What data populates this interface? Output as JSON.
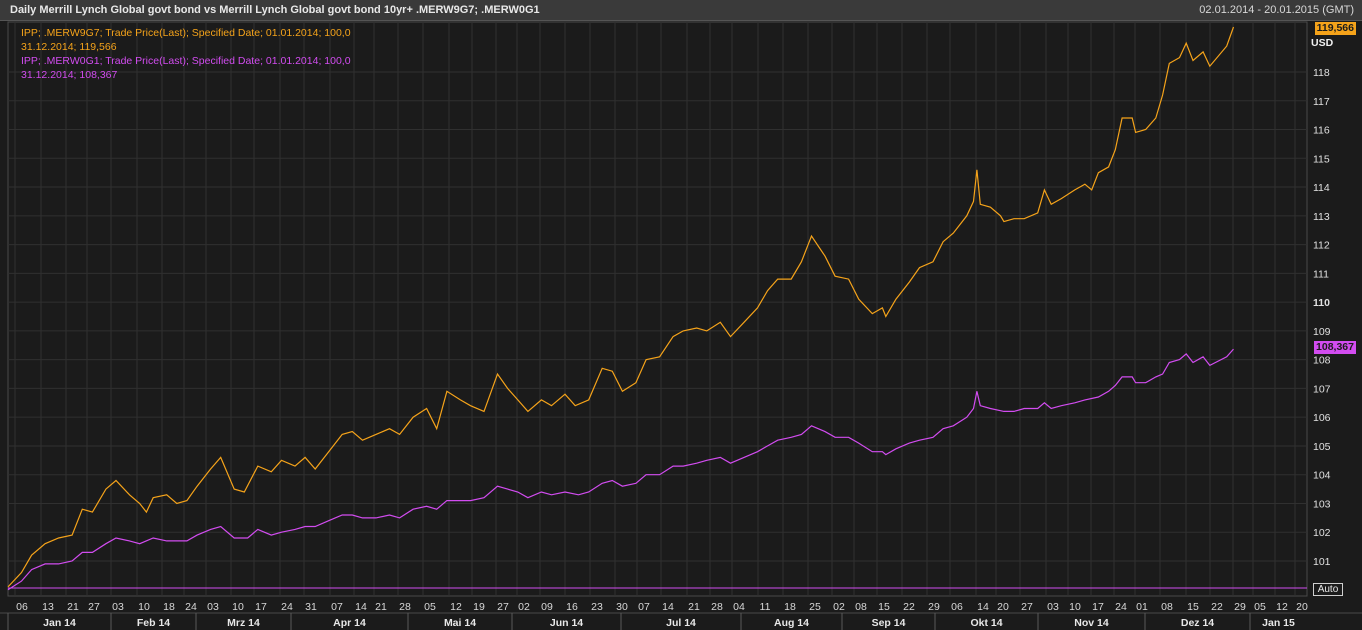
{
  "header": {
    "title": "Daily Merrill Lynch Global govt bond vs Merrill Lynch Global govt bond 10yr+ .MERW9G7; .MERW0G1",
    "date_range": "02.01.2014 - 20.01.2015 (GMT)"
  },
  "legend": {
    "series1_line1": "IPP; .MERW9G7; Trade Price(Last); Specified Date; 01.01.2014; 100,0",
    "series1_line2": "31.12.2014; 119,566",
    "series2_line1": "IPP; .MERW0G1; Trade Price(Last); Specified Date; 01.01.2014; 100,0",
    "series2_line2": "31.12.2014; 108,367"
  },
  "axis": {
    "currency": "USD",
    "auto_label": "Auto"
  },
  "last_values": {
    "series1": "119,566",
    "series2": "108,367"
  },
  "colors": {
    "series1": "#f5a31a",
    "series2": "#d24cf0",
    "grid": "#303030",
    "background": "#1b1b1b"
  },
  "chart_data": {
    "type": "line",
    "title": "Daily Merrill Lynch Global govt bond vs Merrill Lynch Global govt bond 10yr+ .MERW9G7; .MERW0G1",
    "x_range": [
      "2014-01-02",
      "2015-01-20"
    ],
    "ylim": [
      100,
      119.6
    ],
    "y_ticks": [
      "101",
      "102",
      "103",
      "104",
      "105",
      "106",
      "107",
      "108",
      "109",
      "110",
      "111",
      "112",
      "113",
      "114",
      "115",
      "116",
      "117",
      "118"
    ],
    "y_bold_tick": "110",
    "x_day_ticks": [
      "06",
      "13",
      "21",
      "27",
      "03",
      "10",
      "18",
      "24",
      "03",
      "10",
      "17",
      "24",
      "31",
      "07",
      "14",
      "21",
      "28",
      "05",
      "12",
      "19",
      "27",
      "02",
      "09",
      "16",
      "23",
      "30",
      "07",
      "14",
      "21",
      "28",
      "04",
      "11",
      "18",
      "25",
      "02",
      "08",
      "15",
      "22",
      "29",
      "06",
      "14",
      "20",
      "27",
      "03",
      "10",
      "17",
      "24",
      "01",
      "08",
      "15",
      "22",
      "29",
      "05",
      "12",
      "20"
    ],
    "x_month_labels": [
      "Jan 14",
      "Feb 14",
      "Mrz 14",
      "Apr 14",
      "Mai 14",
      "Jun 14",
      "Jul 14",
      "Aug 14",
      "Sep 14",
      "Okt 14",
      "Nov 14",
      "Dez 14",
      "Jan 15"
    ],
    "grid": true,
    "legend_position": "top-left",
    "series": [
      {
        "name": "IPP; .MERW9G7; Trade Price(Last); Specified Date; 01.01.2014; 100,0",
        "color": "#f5a31a",
        "points": [
          [
            "2014-01-02",
            100.1
          ],
          [
            "2014-01-06",
            100.6
          ],
          [
            "2014-01-09",
            101.2
          ],
          [
            "2014-01-13",
            101.6
          ],
          [
            "2014-01-17",
            101.8
          ],
          [
            "2014-01-21",
            101.9
          ],
          [
            "2014-01-24",
            102.8
          ],
          [
            "2014-01-27",
            102.7
          ],
          [
            "2014-01-31",
            103.5
          ],
          [
            "2014-02-03",
            103.8
          ],
          [
            "2014-02-07",
            103.3
          ],
          [
            "2014-02-10",
            103.0
          ],
          [
            "2014-02-12",
            102.7
          ],
          [
            "2014-02-14",
            103.2
          ],
          [
            "2014-02-18",
            103.3
          ],
          [
            "2014-02-21",
            103.0
          ],
          [
            "2014-02-24",
            103.1
          ],
          [
            "2014-02-27",
            103.6
          ],
          [
            "2014-03-03",
            104.2
          ],
          [
            "2014-03-06",
            104.6
          ],
          [
            "2014-03-10",
            103.5
          ],
          [
            "2014-03-13",
            103.4
          ],
          [
            "2014-03-17",
            104.3
          ],
          [
            "2014-03-21",
            104.1
          ],
          [
            "2014-03-24",
            104.5
          ],
          [
            "2014-03-28",
            104.3
          ],
          [
            "2014-03-31",
            104.6
          ],
          [
            "2014-04-03",
            104.2
          ],
          [
            "2014-04-07",
            104.8
          ],
          [
            "2014-04-11",
            105.4
          ],
          [
            "2014-04-14",
            105.5
          ],
          [
            "2014-04-17",
            105.2
          ],
          [
            "2014-04-21",
            105.4
          ],
          [
            "2014-04-25",
            105.6
          ],
          [
            "2014-04-28",
            105.4
          ],
          [
            "2014-05-02",
            106.0
          ],
          [
            "2014-05-06",
            106.3
          ],
          [
            "2014-05-09",
            105.6
          ],
          [
            "2014-05-12",
            106.9
          ],
          [
            "2014-05-16",
            106.6
          ],
          [
            "2014-05-19",
            106.4
          ],
          [
            "2014-05-23",
            106.2
          ],
          [
            "2014-05-27",
            107.5
          ],
          [
            "2014-05-30",
            107.0
          ],
          [
            "2014-06-02",
            106.6
          ],
          [
            "2014-06-05",
            106.2
          ],
          [
            "2014-06-09",
            106.6
          ],
          [
            "2014-06-12",
            106.4
          ],
          [
            "2014-06-16",
            106.8
          ],
          [
            "2014-06-19",
            106.4
          ],
          [
            "2014-06-23",
            106.6
          ],
          [
            "2014-06-27",
            107.7
          ],
          [
            "2014-06-30",
            107.6
          ],
          [
            "2014-07-03",
            106.9
          ],
          [
            "2014-07-07",
            107.2
          ],
          [
            "2014-07-10",
            108.0
          ],
          [
            "2014-07-14",
            108.1
          ],
          [
            "2014-07-18",
            108.8
          ],
          [
            "2014-07-21",
            109.0
          ],
          [
            "2014-07-25",
            109.1
          ],
          [
            "2014-07-28",
            109.0
          ],
          [
            "2014-08-01",
            109.3
          ],
          [
            "2014-08-04",
            108.8
          ],
          [
            "2014-08-08",
            109.3
          ],
          [
            "2014-08-12",
            109.8
          ],
          [
            "2014-08-15",
            110.4
          ],
          [
            "2014-08-18",
            110.8
          ],
          [
            "2014-08-22",
            110.8
          ],
          [
            "2014-08-25",
            111.4
          ],
          [
            "2014-08-28",
            112.3
          ],
          [
            "2014-09-01",
            111.6
          ],
          [
            "2014-09-04",
            110.9
          ],
          [
            "2014-09-08",
            110.8
          ],
          [
            "2014-09-11",
            110.1
          ],
          [
            "2014-09-15",
            109.6
          ],
          [
            "2014-09-18",
            109.8
          ],
          [
            "2014-09-19",
            109.5
          ],
          [
            "2014-09-22",
            110.1
          ],
          [
            "2014-09-26",
            110.7
          ],
          [
            "2014-09-29",
            111.2
          ],
          [
            "2014-10-03",
            111.4
          ],
          [
            "2014-10-06",
            112.1
          ],
          [
            "2014-10-09",
            112.4
          ],
          [
            "2014-10-13",
            113.0
          ],
          [
            "2014-10-15",
            113.5
          ],
          [
            "2014-10-16",
            114.6
          ],
          [
            "2014-10-17",
            113.4
          ],
          [
            "2014-10-20",
            113.3
          ],
          [
            "2014-10-23",
            113.0
          ],
          [
            "2014-10-24",
            112.8
          ],
          [
            "2014-10-27",
            112.9
          ],
          [
            "2014-10-30",
            112.9
          ],
          [
            "2014-11-03",
            113.1
          ],
          [
            "2014-11-05",
            113.9
          ],
          [
            "2014-11-07",
            113.4
          ],
          [
            "2014-11-10",
            113.6
          ],
          [
            "2014-11-14",
            113.9
          ],
          [
            "2014-11-17",
            114.1
          ],
          [
            "2014-11-19",
            113.9
          ],
          [
            "2014-11-21",
            114.5
          ],
          [
            "2014-11-24",
            114.7
          ],
          [
            "2014-11-26",
            115.3
          ],
          [
            "2014-11-28",
            116.4
          ],
          [
            "2014-12-01",
            116.4
          ],
          [
            "2014-12-02",
            115.9
          ],
          [
            "2014-12-05",
            116.0
          ],
          [
            "2014-12-08",
            116.4
          ],
          [
            "2014-12-10",
            117.2
          ],
          [
            "2014-12-12",
            118.3
          ],
          [
            "2014-12-15",
            118.5
          ],
          [
            "2014-12-17",
            119.0
          ],
          [
            "2014-12-19",
            118.4
          ],
          [
            "2014-12-22",
            118.7
          ],
          [
            "2014-12-24",
            118.2
          ],
          [
            "2014-12-29",
            118.9
          ],
          [
            "2014-12-31",
            119.566
          ]
        ]
      },
      {
        "name": "IPP; .MERW0G1; Trade Price(Last); Specified Date; 01.01.2014; 100,0",
        "color": "#d24cf0",
        "points": [
          [
            "2014-01-02",
            100.0
          ],
          [
            "2014-01-06",
            100.3
          ],
          [
            "2014-01-09",
            100.7
          ],
          [
            "2014-01-13",
            100.9
          ],
          [
            "2014-01-17",
            100.9
          ],
          [
            "2014-01-21",
            101.0
          ],
          [
            "2014-01-24",
            101.3
          ],
          [
            "2014-01-27",
            101.3
          ],
          [
            "2014-01-31",
            101.6
          ],
          [
            "2014-02-03",
            101.8
          ],
          [
            "2014-02-07",
            101.7
          ],
          [
            "2014-02-10",
            101.6
          ],
          [
            "2014-02-14",
            101.8
          ],
          [
            "2014-02-18",
            101.7
          ],
          [
            "2014-02-24",
            101.7
          ],
          [
            "2014-02-27",
            101.9
          ],
          [
            "2014-03-03",
            102.1
          ],
          [
            "2014-03-06",
            102.2
          ],
          [
            "2014-03-10",
            101.8
          ],
          [
            "2014-03-14",
            101.8
          ],
          [
            "2014-03-17",
            102.1
          ],
          [
            "2014-03-21",
            101.9
          ],
          [
            "2014-03-24",
            102.0
          ],
          [
            "2014-03-28",
            102.1
          ],
          [
            "2014-03-31",
            102.2
          ],
          [
            "2014-04-03",
            102.2
          ],
          [
            "2014-04-07",
            102.4
          ],
          [
            "2014-04-11",
            102.6
          ],
          [
            "2014-04-14",
            102.6
          ],
          [
            "2014-04-17",
            102.5
          ],
          [
            "2014-04-21",
            102.5
          ],
          [
            "2014-04-25",
            102.6
          ],
          [
            "2014-04-28",
            102.5
          ],
          [
            "2014-05-02",
            102.8
          ],
          [
            "2014-05-06",
            102.9
          ],
          [
            "2014-05-09",
            102.8
          ],
          [
            "2014-05-12",
            103.1
          ],
          [
            "2014-05-16",
            103.1
          ],
          [
            "2014-05-19",
            103.1
          ],
          [
            "2014-05-23",
            103.2
          ],
          [
            "2014-05-27",
            103.6
          ],
          [
            "2014-05-30",
            103.5
          ],
          [
            "2014-06-02",
            103.4
          ],
          [
            "2014-06-05",
            103.2
          ],
          [
            "2014-06-09",
            103.4
          ],
          [
            "2014-06-12",
            103.3
          ],
          [
            "2014-06-16",
            103.4
          ],
          [
            "2014-06-20",
            103.3
          ],
          [
            "2014-06-23",
            103.4
          ],
          [
            "2014-06-27",
            103.7
          ],
          [
            "2014-06-30",
            103.8
          ],
          [
            "2014-07-03",
            103.6
          ],
          [
            "2014-07-07",
            103.7
          ],
          [
            "2014-07-10",
            104.0
          ],
          [
            "2014-07-14",
            104.0
          ],
          [
            "2014-07-18",
            104.3
          ],
          [
            "2014-07-21",
            104.3
          ],
          [
            "2014-07-25",
            104.4
          ],
          [
            "2014-07-28",
            104.5
          ],
          [
            "2014-08-01",
            104.6
          ],
          [
            "2014-08-04",
            104.4
          ],
          [
            "2014-08-08",
            104.6
          ],
          [
            "2014-08-12",
            104.8
          ],
          [
            "2014-08-15",
            105.0
          ],
          [
            "2014-08-18",
            105.2
          ],
          [
            "2014-08-22",
            105.3
          ],
          [
            "2014-08-25",
            105.4
          ],
          [
            "2014-08-28",
            105.7
          ],
          [
            "2014-09-01",
            105.5
          ],
          [
            "2014-09-04",
            105.3
          ],
          [
            "2014-09-08",
            105.3
          ],
          [
            "2014-09-11",
            105.1
          ],
          [
            "2014-09-15",
            104.8
          ],
          [
            "2014-09-18",
            104.8
          ],
          [
            "2014-09-19",
            104.7
          ],
          [
            "2014-09-22",
            104.9
          ],
          [
            "2014-09-26",
            105.1
          ],
          [
            "2014-09-29",
            105.2
          ],
          [
            "2014-10-03",
            105.3
          ],
          [
            "2014-10-06",
            105.6
          ],
          [
            "2014-10-09",
            105.7
          ],
          [
            "2014-10-13",
            106.0
          ],
          [
            "2014-10-15",
            106.3
          ],
          [
            "2014-10-16",
            106.9
          ],
          [
            "2014-10-17",
            106.4
          ],
          [
            "2014-10-20",
            106.3
          ],
          [
            "2014-10-24",
            106.2
          ],
          [
            "2014-10-27",
            106.2
          ],
          [
            "2014-10-30",
            106.3
          ],
          [
            "2014-11-03",
            106.3
          ],
          [
            "2014-11-05",
            106.5
          ],
          [
            "2014-11-07",
            106.3
          ],
          [
            "2014-11-10",
            106.4
          ],
          [
            "2014-11-14",
            106.5
          ],
          [
            "2014-11-17",
            106.6
          ],
          [
            "2014-11-21",
            106.7
          ],
          [
            "2014-11-24",
            106.9
          ],
          [
            "2014-11-26",
            107.1
          ],
          [
            "2014-11-28",
            107.4
          ],
          [
            "2014-12-01",
            107.4
          ],
          [
            "2014-12-02",
            107.2
          ],
          [
            "2014-12-05",
            107.2
          ],
          [
            "2014-12-08",
            107.4
          ],
          [
            "2014-12-10",
            107.5
          ],
          [
            "2014-12-12",
            107.9
          ],
          [
            "2014-12-15",
            108.0
          ],
          [
            "2014-12-17",
            108.2
          ],
          [
            "2014-12-19",
            107.9
          ],
          [
            "2014-12-22",
            108.1
          ],
          [
            "2014-12-24",
            107.8
          ],
          [
            "2014-12-29",
            108.1
          ],
          [
            "2014-12-31",
            108.367
          ]
        ]
      }
    ]
  }
}
